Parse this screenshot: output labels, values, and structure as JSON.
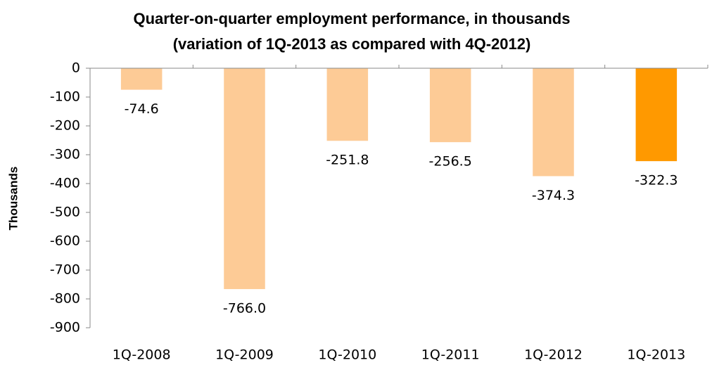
{
  "chart_data": {
    "type": "bar",
    "title": [
      "Quarter-on-quarter employment  performance, in thousands",
      "(variation of 1Q-2013 as compared with 4Q-2012)"
    ],
    "y_label": "Thousands",
    "categories": [
      "1Q-2008",
      "1Q-2009",
      "1Q-2010",
      "1Q-2011",
      "1Q-2012",
      "1Q-2013"
    ],
    "values": [
      -74.6,
      -766,
      -251.8,
      -256.5,
      -374.3,
      -322.3
    ],
    "value_labels": [
      "-74.6",
      "-766.0",
      "-251.8",
      "-256.5",
      "-374.3",
      "-322.3"
    ],
    "colors": [
      "#fdcb96",
      "#fdcb96",
      "#fdcb96",
      "#fdcb96",
      "#fdcb96",
      "#ff9900"
    ],
    "ylim": [
      -900,
      0
    ],
    "yticks": [
      0,
      -100,
      -200,
      -300,
      -400,
      -500,
      -600,
      -700,
      -800,
      -900
    ],
    "grid": false
  }
}
